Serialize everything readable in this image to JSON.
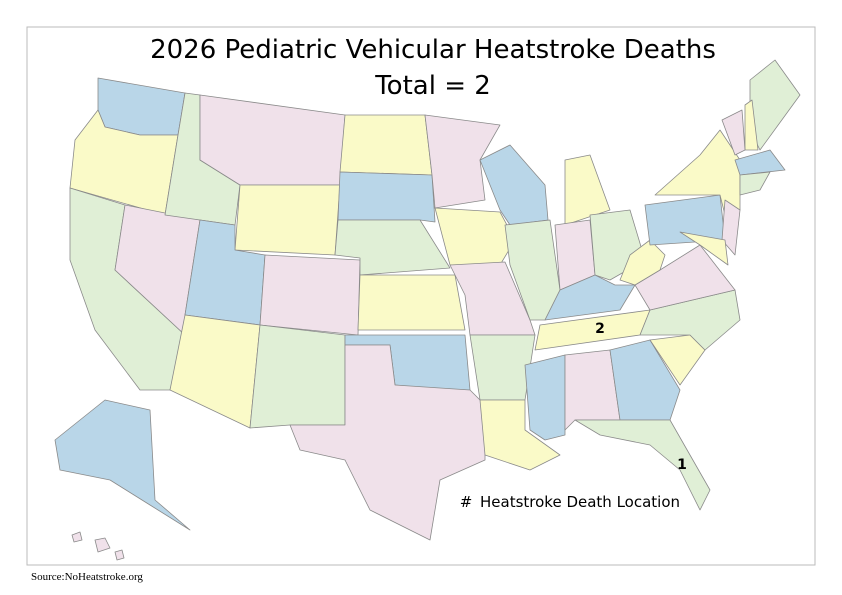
{
  "header": {
    "title": "2026 Pediatric Vehicular Heatstroke Deaths",
    "subtitle": "Total = 2"
  },
  "map": {
    "markers": [
      {
        "label": 2
      },
      {
        "label": 1
      }
    ]
  },
  "legend": {
    "symbol": "#",
    "label": "Heatstroke Death Location"
  },
  "footer": {
    "source": "Source:NoHeatstroke.org"
  }
}
